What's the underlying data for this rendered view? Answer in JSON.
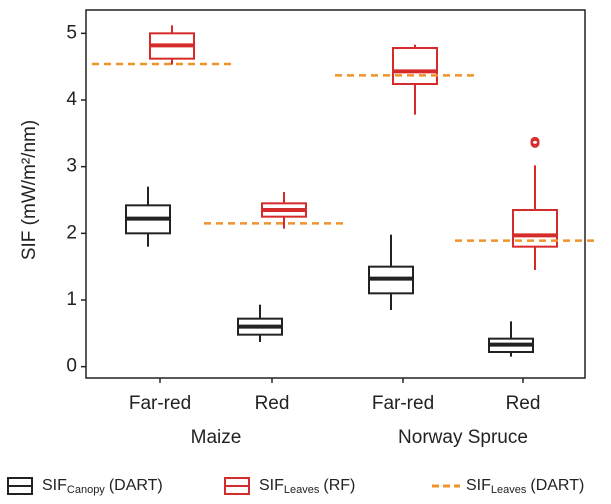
{
  "chart_data": {
    "type": "box",
    "y_label": "SIF (mW/m²/nm)",
    "categories": [
      "Far-red",
      "Red",
      "Far-red",
      "Red"
    ],
    "groups": [
      {
        "label": "Maize",
        "span": [
          0,
          1
        ]
      },
      {
        "label": "Norway Spruce",
        "span": [
          2,
          3
        ]
      }
    ],
    "ylim": [
      -0.17,
      5.35
    ],
    "yticks": [
      0,
      1,
      2,
      3,
      4,
      5
    ],
    "series": [
      {
        "name": "SIF",
        "name_sub": "Canopy",
        "name_suffix": "(DART)",
        "color": "#222222",
        "kind": "box",
        "values": [
          {
            "whislo": 1.8,
            "q1": 2.0,
            "med": 2.22,
            "q3": 2.42,
            "whishi": 2.7,
            "outliers": []
          },
          {
            "whislo": 0.37,
            "q1": 0.48,
            "med": 0.6,
            "q3": 0.72,
            "whishi": 0.93,
            "outliers": []
          },
          {
            "whislo": 0.85,
            "q1": 1.1,
            "med": 1.32,
            "q3": 1.5,
            "whishi": 1.98,
            "outliers": []
          },
          {
            "whislo": 0.15,
            "q1": 0.22,
            "med": 0.33,
            "q3": 0.42,
            "whishi": 0.68,
            "outliers": []
          }
        ]
      },
      {
        "name": "SIF",
        "name_sub": "Leaves",
        "name_suffix": "(RF)",
        "color": "#d62b2b",
        "kind": "box",
        "values": [
          {
            "whislo": 4.53,
            "q1": 4.62,
            "med": 4.82,
            "q3": 5.0,
            "whishi": 5.12,
            "outliers": []
          },
          {
            "whislo": 2.07,
            "q1": 2.25,
            "med": 2.35,
            "q3": 2.45,
            "whishi": 2.62,
            "outliers": []
          },
          {
            "whislo": 3.78,
            "q1": 4.24,
            "med": 4.43,
            "q3": 4.78,
            "whishi": 4.83,
            "outliers": []
          },
          {
            "whislo": 1.45,
            "q1": 1.8,
            "med": 1.97,
            "q3": 2.35,
            "whishi": 3.02,
            "outliers": [
              3.35,
              3.38
            ]
          }
        ]
      },
      {
        "name": "SIF",
        "name_sub": "Leaves",
        "name_suffix": "(DART)",
        "color": "#f0932b",
        "kind": "dashed",
        "values": [
          4.54,
          2.15,
          4.37,
          1.89
        ]
      }
    ]
  }
}
